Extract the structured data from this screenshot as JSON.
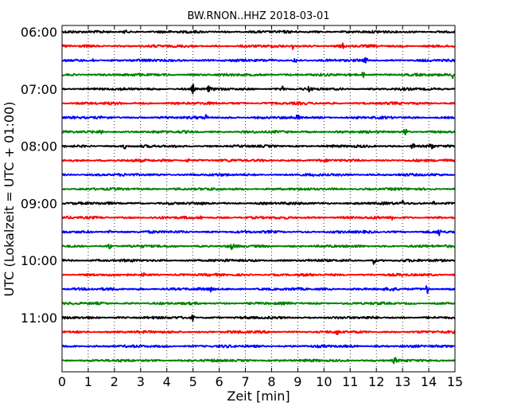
{
  "chart_data": {
    "type": "line",
    "title": "BW.RNON..HHZ 2018-03-01",
    "xlabel": "Zeit  [min]",
    "ylabel": "UTC (Lokalzeit = UTC + 01:00)",
    "xlim": [
      0,
      15
    ],
    "x_ticks": [
      "0",
      "1",
      "2",
      "3",
      "4",
      "5",
      "6",
      "7",
      "8",
      "9",
      "10",
      "11",
      "12",
      "13",
      "14",
      "15"
    ],
    "y_tick_labels": [
      "06:00",
      "07:00",
      "08:00",
      "09:00",
      "10:00",
      "11:00"
    ],
    "y_tick_rows": [
      0,
      4,
      8,
      12,
      16,
      20
    ],
    "traces_start": "06:00",
    "trace_interval_minutes": 15,
    "trace_count": 24,
    "color_cycle": [
      "#000000",
      "#ff0000",
      "#0000ff",
      "#008000"
    ],
    "grid": "vertical dotted",
    "events": [
      {
        "trace": 0,
        "minute": 2.4,
        "amp": 0.35
      },
      {
        "trace": 1,
        "minute": 8.8,
        "amp": 0.55
      },
      {
        "trace": 1,
        "minute": 10.7,
        "amp": 0.45
      },
      {
        "trace": 2,
        "minute": 1.2,
        "amp": 0.55
      },
      {
        "trace": 2,
        "minute": 8.9,
        "amp": 0.5
      },
      {
        "trace": 2,
        "minute": 11.6,
        "amp": 0.45
      },
      {
        "trace": 3,
        "minute": 11.5,
        "amp": 0.5
      },
      {
        "trace": 3,
        "minute": 14.9,
        "amp": 0.7
      },
      {
        "trace": 4,
        "minute": 5.0,
        "amp": 0.85
      },
      {
        "trace": 4,
        "minute": 5.6,
        "amp": 0.45
      },
      {
        "trace": 4,
        "minute": 8.4,
        "amp": 0.5
      },
      {
        "trace": 4,
        "minute": 9.4,
        "amp": 0.45
      },
      {
        "trace": 6,
        "minute": 5.5,
        "amp": 0.45
      },
      {
        "trace": 6,
        "minute": 9.0,
        "amp": 0.5
      },
      {
        "trace": 7,
        "minute": 1.5,
        "amp": 0.6
      },
      {
        "trace": 7,
        "minute": 13.1,
        "amp": 0.6
      },
      {
        "trace": 8,
        "minute": 2.4,
        "amp": 0.45
      },
      {
        "trace": 8,
        "minute": 13.4,
        "amp": 0.75
      },
      {
        "trace": 8,
        "minute": 14.1,
        "amp": 0.8
      },
      {
        "trace": 9,
        "minute": 4.8,
        "amp": 0.5
      },
      {
        "trace": 10,
        "minute": 9.0,
        "amp": 0.45
      },
      {
        "trace": 12,
        "minute": 13.0,
        "amp": 0.5
      },
      {
        "trace": 12,
        "minute": 14.2,
        "amp": 0.45
      },
      {
        "trace": 13,
        "minute": 5.3,
        "amp": 0.4
      },
      {
        "trace": 13,
        "minute": 12.6,
        "amp": 0.6
      },
      {
        "trace": 14,
        "minute": 1.8,
        "amp": 0.4
      },
      {
        "trace": 14,
        "minute": 14.4,
        "amp": 0.75
      },
      {
        "trace": 15,
        "minute": 1.8,
        "amp": 0.55
      },
      {
        "trace": 15,
        "minute": 6.5,
        "amp": 0.55
      },
      {
        "trace": 16,
        "minute": 11.9,
        "amp": 0.7
      },
      {
        "trace": 17,
        "minute": 3.1,
        "amp": 0.4
      },
      {
        "trace": 18,
        "minute": 5.7,
        "amp": 0.5
      },
      {
        "trace": 18,
        "minute": 12.6,
        "amp": 0.5
      },
      {
        "trace": 18,
        "minute": 13.95,
        "amp": 1.2
      },
      {
        "trace": 20,
        "minute": 5.0,
        "amp": 0.5
      },
      {
        "trace": 21,
        "minute": 10.5,
        "amp": 0.45
      },
      {
        "trace": 23,
        "minute": 12.7,
        "amp": 0.55
      }
    ]
  }
}
